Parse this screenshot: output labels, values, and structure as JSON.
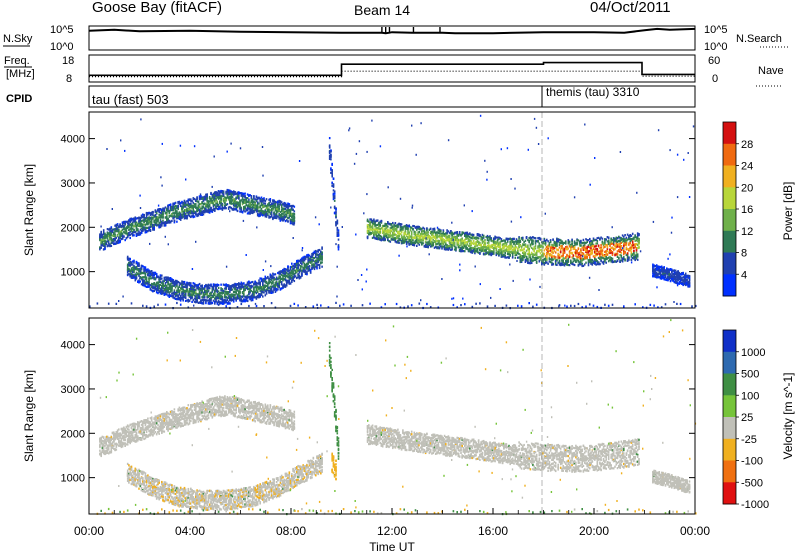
{
  "header": {
    "station": "Goose Bay (fitACF)",
    "beam": "Beam 14",
    "date": "04/Oct/2011"
  },
  "noise_panel": {
    "left_label": "N.Sky",
    "right_label": "N.Search",
    "tick_top": "10^5",
    "tick_bottom": "10^0",
    "x": [
      0,
      1,
      2,
      4,
      6,
      8,
      10,
      11.6,
      11.75,
      11.9,
      12,
      12.8,
      14,
      14.5,
      16,
      18,
      20,
      21.2,
      22,
      22.5,
      23,
      24
    ],
    "sky": [
      4.0,
      4.2,
      3.9,
      4.0,
      3.8,
      3.7,
      3.6,
      3.6,
      3.5,
      3.6,
      3.7,
      3.6,
      3.6,
      3.5,
      3.5,
      3.7,
      3.7,
      3.6,
      4.1,
      4.4,
      4.2,
      4.4
    ],
    "spikes": [
      11.6,
      11.75,
      11.9,
      12.85,
      13.9
    ]
  },
  "freq_panel": {
    "left_label_1": "Freq.",
    "left_label_2": "[MHz]",
    "right_label": "Nave",
    "left_ticks": [
      "18",
      "8"
    ],
    "right_ticks": [
      "60",
      "0"
    ],
    "freq_x": [
      0,
      10,
      10,
      18,
      18,
      21.9,
      21.9,
      24
    ],
    "freq_y": [
      10.5,
      10.5,
      14.6,
      14.6,
      15.2,
      15.2,
      10.8,
      10.8
    ],
    "nave_x": [
      0,
      10,
      10,
      21.9,
      21.9,
      24
    ],
    "nave_y": [
      12,
      12,
      24,
      24,
      13,
      13
    ]
  },
  "cpid_panel": {
    "label": "CPID",
    "segments": [
      {
        "start": 0,
        "label": "tau (fast) 503"
      },
      {
        "start": 18,
        "label": "themis (tau) 3310"
      }
    ]
  },
  "chart_data": [
    {
      "type": "heatmap",
      "title": "Power",
      "ylabel": "Slant Range [km]",
      "xlim": [
        0,
        24
      ],
      "ylim": [
        180,
        4600
      ],
      "yticks": [
        1000,
        2000,
        3000,
        4000
      ],
      "colorbar": {
        "label": "Power [dB]",
        "ticks": [
          "4",
          "8",
          "12",
          "16",
          "20",
          "24",
          "28"
        ],
        "colors": [
          "#0030ff",
          "#2040b0",
          "#2f7a55",
          "#6fb04a",
          "#b8d63a",
          "#f0b020",
          "#f06a10",
          "#d41010"
        ]
      },
      "features": [
        {
          "name": "morning-arc",
          "x": [
            0.4,
            1.5,
            2.5,
            3.5,
            4.5,
            5.0,
            5.5,
            6.5,
            7.5,
            8.1
          ],
          "y": [
            1700,
            1980,
            2180,
            2380,
            2530,
            2620,
            2650,
            2520,
            2400,
            2300
          ],
          "level": 10
        },
        {
          "name": "lower-band",
          "x": [
            1.5,
            2.5,
            3.5,
            4.5,
            5.5,
            6.5,
            7.5,
            8.5,
            9.2
          ],
          "y": [
            1150,
            800,
            600,
            520,
            520,
            600,
            820,
            1150,
            1350
          ],
          "level": 9
        },
        {
          "name": "vertical-streak",
          "x": [
            9.5,
            9.75,
            9.9
          ],
          "y": [
            3800,
            2300,
            1400
          ],
          "level": 6
        },
        {
          "name": "evening-band",
          "x": [
            11.0,
            13.0,
            15.0,
            16.5,
            18.0,
            19.5,
            21.0,
            21.8
          ],
          "y": [
            2000,
            1820,
            1680,
            1560,
            1480,
            1450,
            1540,
            1600
          ],
          "level": 15
        },
        {
          "name": "late-patch",
          "x": [
            22.3,
            23.0,
            23.8
          ],
          "y": [
            1050,
            950,
            800
          ],
          "level": 6
        }
      ]
    },
    {
      "type": "heatmap",
      "title": "Velocity",
      "ylabel": "Slant Range [km]",
      "xlabel": "Time UT",
      "xlim": [
        0,
        24
      ],
      "ylim": [
        180,
        4600
      ],
      "yticks": [
        1000,
        2000,
        3000,
        4000
      ],
      "xticks": [
        "00:00",
        "04:00",
        "08:00",
        "12:00",
        "16:00",
        "20:00",
        "00:00"
      ],
      "colorbar": {
        "label": "Velocity [m s^-1]",
        "ticks": [
          "1000",
          "500",
          "100",
          "25",
          "-25",
          "-100",
          "-500",
          "-1000"
        ],
        "colors": [
          "#1030c8",
          "#2e6ab0",
          "#3f8f44",
          "#76c43a",
          "#c0c0b8",
          "#f0b020",
          "#f07010",
          "#e01010"
        ]
      },
      "features": [
        {
          "name": "morning-arc",
          "x": [
            0.4,
            1.5,
            2.5,
            3.5,
            4.5,
            5.0,
            5.5,
            6.5,
            7.5,
            8.1
          ],
          "y": [
            1700,
            1980,
            2180,
            2380,
            2530,
            2620,
            2650,
            2520,
            2400,
            2300
          ],
          "velocity": 0
        },
        {
          "name": "lower-band",
          "x": [
            1.5,
            2.5,
            3.5,
            4.5,
            5.5,
            6.5,
            7.5,
            8.5,
            9.2
          ],
          "y": [
            1150,
            800,
            600,
            520,
            520,
            600,
            820,
            1150,
            1350
          ],
          "velocity": -10
        },
        {
          "name": "vertical-streak",
          "x": [
            9.5,
            9.75,
            9.9
          ],
          "y": [
            3800,
            2300,
            1400
          ],
          "velocity": 150
        },
        {
          "name": "orange-patch",
          "x": [
            9.6,
            9.8
          ],
          "y": [
            1350,
            1150
          ],
          "velocity": -300
        },
        {
          "name": "evening-band",
          "x": [
            11.0,
            13.0,
            15.0,
            16.5,
            18.0,
            19.5,
            21.0,
            21.8
          ],
          "y": [
            2000,
            1820,
            1680,
            1560,
            1480,
            1450,
            1540,
            1600
          ],
          "velocity": 0
        },
        {
          "name": "late-patch",
          "x": [
            22.3,
            23.0,
            23.8
          ],
          "y": [
            1050,
            950,
            800
          ],
          "velocity": 0
        }
      ]
    }
  ]
}
